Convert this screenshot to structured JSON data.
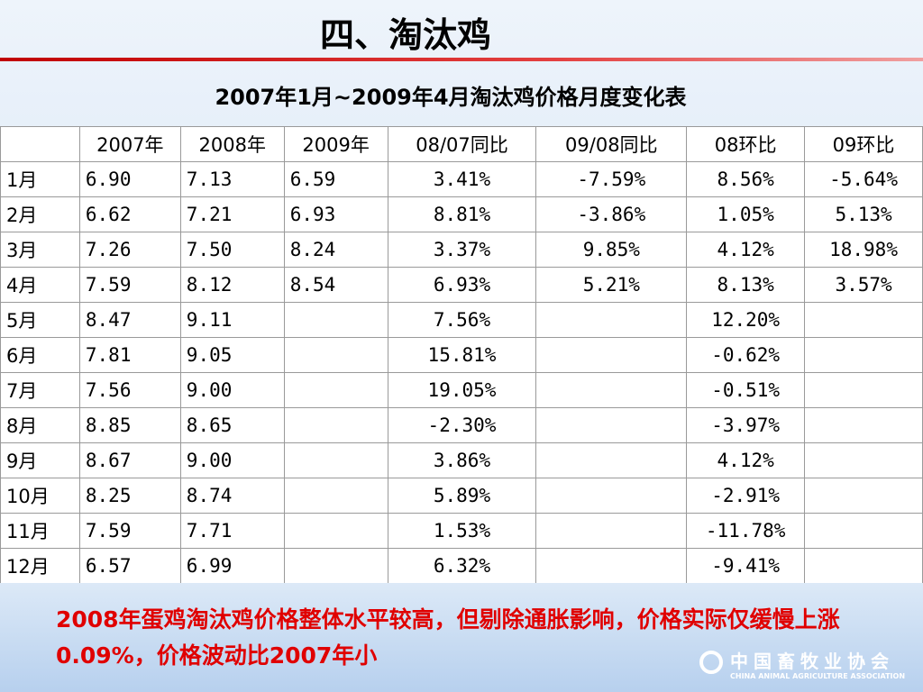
{
  "header": {
    "title": "四、淘汰鸡",
    "subtitle": "2007年1月~2009年4月淘汰鸡价格月度变化表"
  },
  "table": {
    "columns": [
      null,
      "2007年",
      "2008年",
      "2009年",
      "08/07同比",
      "09/08同比",
      "08环比",
      "09环比"
    ],
    "rows": [
      [
        "1月",
        "6.90",
        "7.13",
        "6.59",
        "3.41%",
        "-7.59%",
        "8.56%",
        "-5.64%"
      ],
      [
        "2月",
        "6.62",
        "7.21",
        "6.93",
        "8.81%",
        "-3.86%",
        "1.05%",
        "5.13%"
      ],
      [
        "3月",
        "7.26",
        "7.50",
        "8.24",
        "3.37%",
        "9.85%",
        "4.12%",
        "18.98%"
      ],
      [
        "4月",
        "7.59",
        "8.12",
        "8.54",
        "6.93%",
        "5.21%",
        "8.13%",
        "3.57%"
      ],
      [
        "5月",
        "8.47",
        "9.11",
        null,
        "7.56%",
        null,
        "12.20%",
        null
      ],
      [
        "6月",
        "7.81",
        "9.05",
        null,
        "15.81%",
        null,
        "-0.62%",
        null
      ],
      [
        "7月",
        "7.56",
        "9.00",
        null,
        "19.05%",
        null,
        "-0.51%",
        null
      ],
      [
        "8月",
        "8.85",
        "8.65",
        null,
        "-2.30%",
        null,
        "-3.97%",
        null
      ],
      [
        "9月",
        "8.67",
        "9.00",
        null,
        "3.86%",
        null,
        "4.12%",
        null
      ],
      [
        "10月",
        "8.25",
        "8.74",
        null,
        "5.89%",
        null,
        "-2.91%",
        null
      ],
      [
        "11月",
        "7.59",
        "7.71",
        null,
        "1.53%",
        null,
        "-11.78%",
        null
      ],
      [
        "12月",
        "6.57",
        "6.99",
        null,
        "6.32%",
        null,
        "-9.41%",
        null
      ]
    ]
  },
  "note": "2008年蛋鸡淘汰鸡价格整体水平较高，但剔除通胀影响，价格实际仅缓慢上涨0.09%，价格波动比2007年小",
  "footer": {
    "logo_cn": "中国畜牧业协会",
    "logo_en": "CHINA ANIMAL AGRICULTURE ASSOCIATION"
  }
}
